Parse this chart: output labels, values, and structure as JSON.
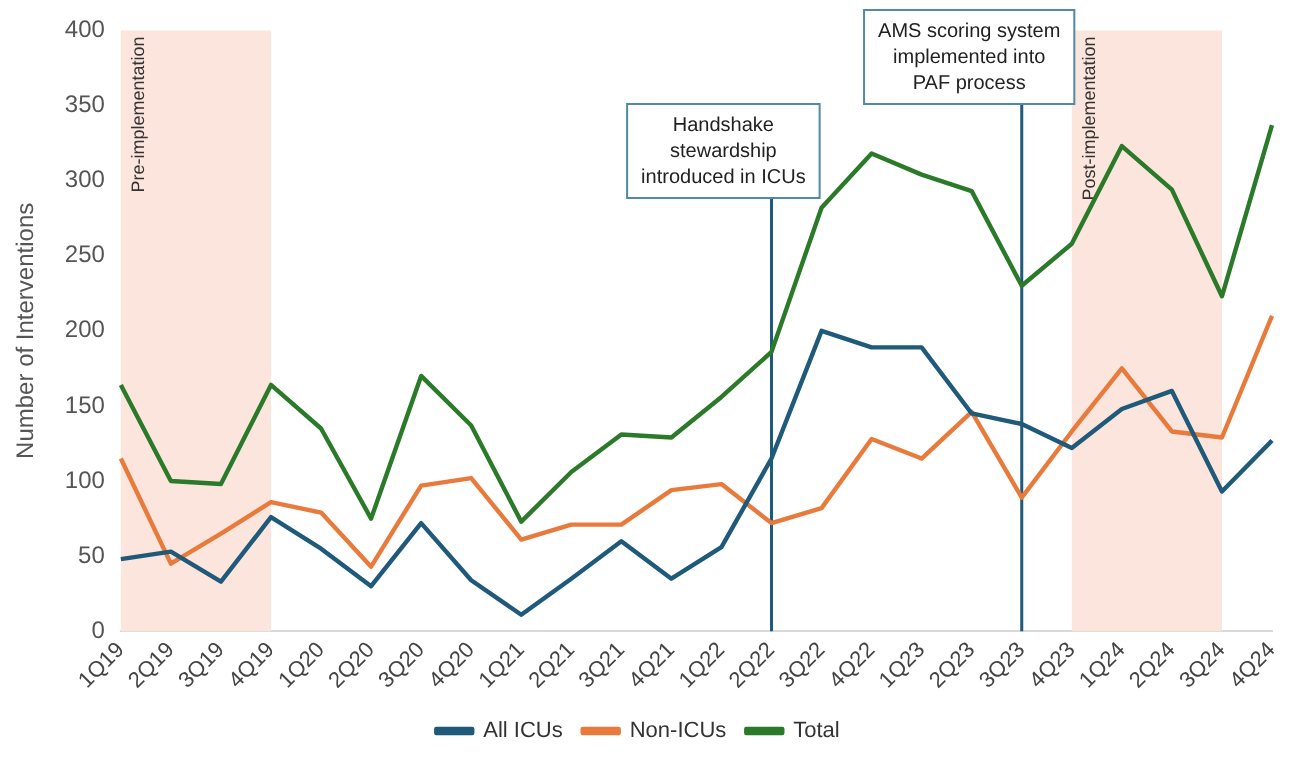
{
  "chart_data": {
    "type": "line",
    "ylabel": "Number of Interventions",
    "categories": [
      "1Q19",
      "2Q19",
      "3Q19",
      "4Q19",
      "1Q20",
      "2Q20",
      "3Q20",
      "4Q20",
      "1Q21",
      "2Q21",
      "3Q21",
      "4Q21",
      "1Q22",
      "2Q22",
      "3Q22",
      "4Q22",
      "1Q23",
      "2Q23",
      "3Q23",
      "4Q23",
      "1Q24",
      "2Q24",
      "3Q24",
      "4Q24"
    ],
    "series": [
      {
        "name": "All ICUs",
        "color": "#1f5a7a",
        "values": [
          48,
          53,
          33,
          76,
          55,
          30,
          72,
          34,
          11,
          35,
          60,
          35,
          56,
          115,
          200,
          189,
          189,
          145,
          138,
          122,
          148,
          160,
          93,
          127
        ]
      },
      {
        "name": "Non-ICUs",
        "color": "#e87a3c",
        "values": [
          115,
          45,
          65,
          86,
          79,
          43,
          97,
          102,
          61,
          71,
          71,
          94,
          98,
          72,
          82,
          128,
          115,
          146,
          89,
          133,
          175,
          133,
          129,
          210
        ]
      },
      {
        "name": "Total",
        "color": "#2a7a2a",
        "values": [
          164,
          100,
          98,
          164,
          135,
          75,
          170,
          137,
          73,
          106,
          131,
          129,
          156,
          186,
          282,
          318,
          304,
          293,
          230,
          258,
          323,
          294,
          223,
          337
        ]
      }
    ],
    "ylim": [
      0,
      400
    ],
    "yticks": [
      0,
      50,
      100,
      150,
      200,
      250,
      300,
      350,
      400
    ],
    "grid": false,
    "legend": "bottom",
    "marker": "none",
    "line_style": "solid",
    "bands": [
      {
        "axis": "x",
        "from": "1Q19",
        "to": "4Q19",
        "label": "Pre-implementation",
        "color": "#fbe5dc"
      },
      {
        "axis": "x",
        "from": "4Q23",
        "to": "3Q24",
        "label": "Post-implementation",
        "color": "#fbe5dc"
      }
    ],
    "ref_lines": [
      {
        "axis": "x",
        "value": "2Q22",
        "label": "Handshake\nstewardship\nintroduced in ICUs",
        "color": "#1f5a7a"
      },
      {
        "axis": "x",
        "value": "3Q23",
        "label": "AMS scoring system\nimplemented into\nPAF process",
        "color": "#1f5a7a"
      }
    ]
  }
}
